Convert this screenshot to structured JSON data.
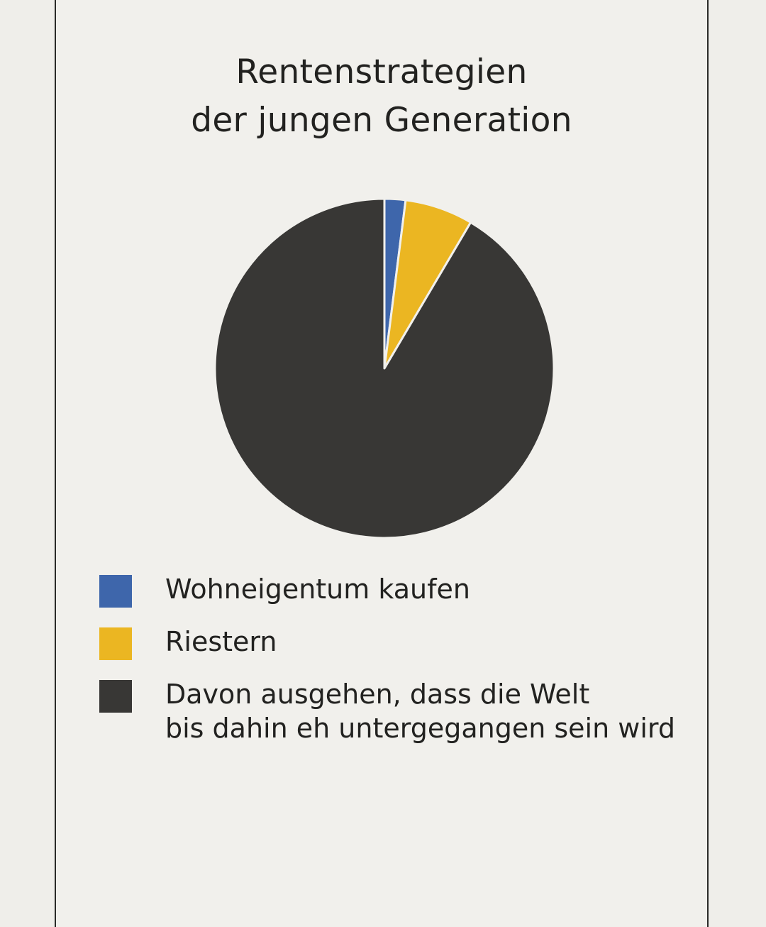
{
  "chart_data": {
    "type": "pie",
    "title_lines": [
      "Rentenstrategien",
      "der jungen Generation"
    ],
    "slices": [
      {
        "label": "Wohneigentum kaufen",
        "value": 2,
        "color": "#3e66ab"
      },
      {
        "label": "Riestern",
        "value": 6.5,
        "color": "#ebb622"
      },
      {
        "label": "Davon ausgehen, dass die Welt\nbis dahin eh untergegangen sein wird",
        "value": 91.5,
        "color": "#383735"
      }
    ],
    "start_angle": "12 o'clock",
    "direction": "clockwise",
    "legend_position": "bottom-left"
  }
}
